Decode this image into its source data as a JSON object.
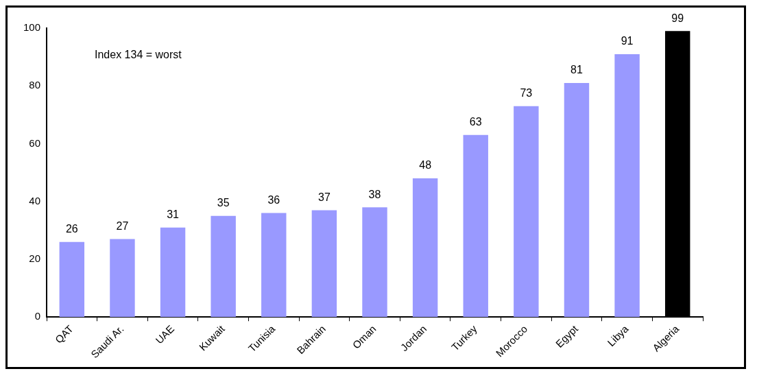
{
  "chart_data": {
    "type": "bar",
    "categories": [
      "QAT",
      "Saudi Ar.",
      "UAE",
      "Kuwait",
      "Tunisia",
      "Bahrain",
      "Oman",
      "Jordan",
      "Turkey",
      "Morocco",
      "Egypt",
      "Libya",
      "Algeria"
    ],
    "values": [
      26,
      27,
      31,
      35,
      36,
      37,
      38,
      48,
      63,
      73,
      81,
      91,
      99
    ],
    "colors": [
      "#9999ff",
      "#9999ff",
      "#9999ff",
      "#9999ff",
      "#9999ff",
      "#9999ff",
      "#9999ff",
      "#9999ff",
      "#9999ff",
      "#9999ff",
      "#9999ff",
      "#9999ff",
      "#000000"
    ],
    "ylim": [
      0,
      100
    ],
    "yticks": [
      0,
      20,
      40,
      60,
      80,
      100
    ],
    "grid": false,
    "legend": false,
    "data_labels": true,
    "annotations": [
      "Index 134 = worst"
    ]
  }
}
